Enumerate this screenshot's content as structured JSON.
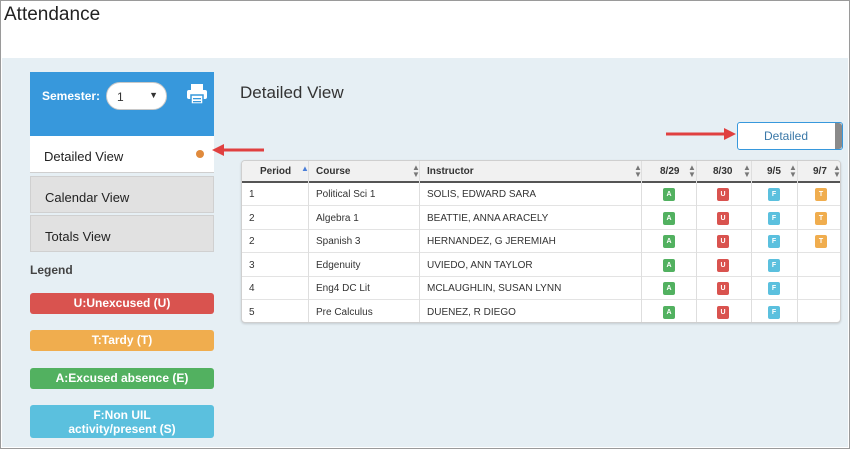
{
  "page": {
    "title": "Attendance"
  },
  "sidebar": {
    "semester_label": "Semester:",
    "semester_value": "1",
    "nav": [
      {
        "label": "Detailed View",
        "active": true
      },
      {
        "label": "Calendar View",
        "active": false
      },
      {
        "label": "Totals View",
        "active": false
      }
    ],
    "legend_title": "Legend",
    "legend": [
      {
        "label": "U:Unexcused (U)",
        "color": "#d9534f"
      },
      {
        "label": "T:Tardy (T)",
        "color": "#f0ad4e"
      },
      {
        "label": "A:Excused absence (E)",
        "color": "#52b160"
      },
      {
        "label": "F:Non UIL activity/present (S)",
        "color": "#5bc0de"
      }
    ]
  },
  "main": {
    "title": "Detailed View",
    "detailed_button": "Detailed",
    "table": {
      "headers": [
        "Period",
        "Course",
        "Instructor",
        "8/29",
        "8/30",
        "9/5",
        "9/7"
      ],
      "rows": [
        {
          "period": "1",
          "course": "Political Sci 1",
          "instructor": "SOLIS, EDWARD SARA",
          "codes": [
            "A",
            "U",
            "F",
            "T"
          ]
        },
        {
          "period": "2",
          "course": "Algebra 1",
          "instructor": "BEATTIE, ANNA ARACELY",
          "codes": [
            "A",
            "U",
            "F",
            "T"
          ]
        },
        {
          "period": "2",
          "course": "Spanish 3",
          "instructor": "HERNANDEZ, G JEREMIAH",
          "codes": [
            "A",
            "U",
            "F",
            "T"
          ]
        },
        {
          "period": "3",
          "course": "Edgenuity",
          "instructor": "UVIEDO, ANN TAYLOR",
          "codes": [
            "A",
            "U",
            "F",
            ""
          ]
        },
        {
          "period": "4",
          "course": "Eng4 DC Lit",
          "instructor": "MCLAUGHLIN, SUSAN LYNN",
          "codes": [
            "A",
            "U",
            "F",
            ""
          ]
        },
        {
          "period": "5",
          "course": "Pre Calculus",
          "instructor": "DUENEZ, R DIEGO",
          "codes": [
            "A",
            "U",
            "F",
            ""
          ]
        }
      ]
    }
  },
  "icons": {
    "print": "print-icon"
  },
  "colors": {
    "accent": "#3798dc",
    "annotation_arrow": "#e04040"
  }
}
